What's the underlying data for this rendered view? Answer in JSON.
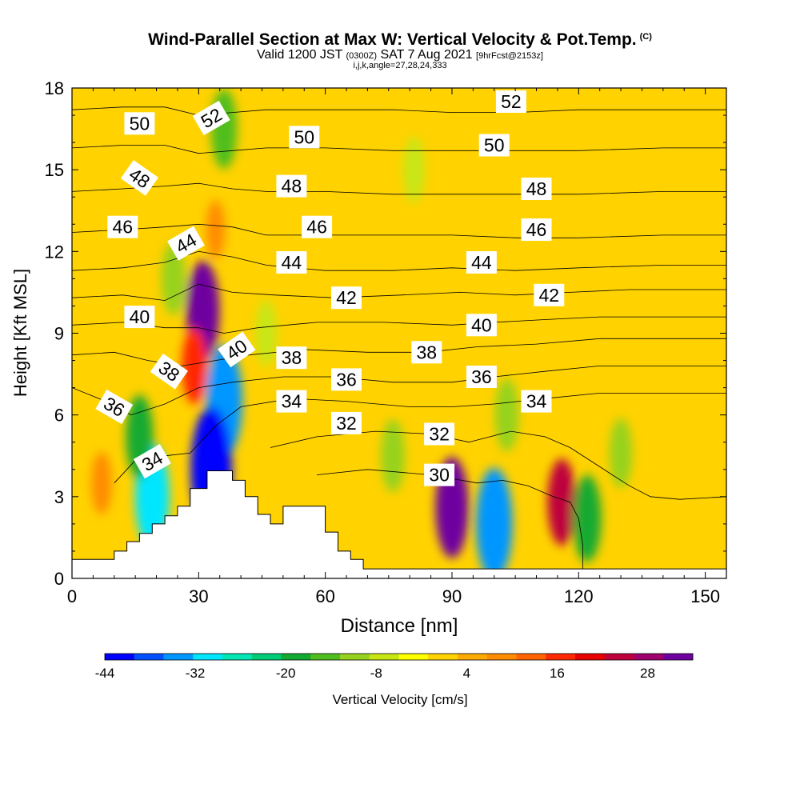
{
  "title": {
    "main": "Wind-Parallel Section at Max W: Vertical Velocity & Pot.Temp.",
    "copyright": "(C)",
    "valid_prefix": "Valid 1200 JST",
    "valid_utc": "(0300Z)",
    "valid_date": "SAT 7 Aug 2021",
    "forecast": "[9hrFcst@2153z]",
    "subtitle": "i,j,k,angle=27,28,24,333"
  },
  "chart_data": {
    "type": "heatmap",
    "xlabel": "Distance [nm]",
    "ylabel": "Height [Kft MSL]",
    "xlim": [
      0,
      155
    ],
    "ylim": [
      0,
      18
    ],
    "x_ticks": [
      "0",
      "30",
      "60",
      "90",
      "120",
      "150"
    ],
    "x_tick_values": [
      0,
      30,
      60,
      90,
      120,
      150
    ],
    "y_ticks": [
      "0",
      "3",
      "6",
      "9",
      "12",
      "15",
      "18"
    ],
    "y_tick_values": [
      0,
      3,
      6,
      9,
      12,
      15,
      18
    ],
    "colorbar": {
      "label": "Vertical Velocity [cm/s]",
      "ticks": [
        "-44",
        "-32",
        "-20",
        "-8",
        "4",
        "16",
        "28"
      ],
      "tick_values": [
        -44,
        -32,
        -20,
        -8,
        4,
        16,
        28
      ],
      "range": [
        -44,
        34
      ],
      "colors": [
        "#0000ff",
        "#0050ff",
        "#0096ff",
        "#00e6ff",
        "#00e6b4",
        "#00cc78",
        "#14aa32",
        "#50be1e",
        "#96d21e",
        "#c8e614",
        "#ffff00",
        "#ffd200",
        "#ffaa00",
        "#ff8c00",
        "#ff6400",
        "#ff2800",
        "#e60000",
        "#be003c",
        "#a0006e",
        "#6e00a0"
      ]
    },
    "background_value": 2,
    "velocity_features": [
      {
        "x": 31,
        "y": 9.8,
        "value": 32
      },
      {
        "x": 29,
        "y": 7.8,
        "value": 18
      },
      {
        "x": 34,
        "y": 12.8,
        "value": 8
      },
      {
        "x": 36,
        "y": 6.5,
        "value": -34
      },
      {
        "x": 33,
        "y": 4.0,
        "value": -42
      },
      {
        "x": 19,
        "y": 3.0,
        "value": -30
      },
      {
        "x": 16,
        "y": 5.2,
        "value": -18
      },
      {
        "x": 36,
        "y": 16.5,
        "value": -16
      },
      {
        "x": 24,
        "y": 11.0,
        "value": -12
      },
      {
        "x": 90,
        "y": 2.6,
        "value": 32
      },
      {
        "x": 100,
        "y": 2.0,
        "value": -34
      },
      {
        "x": 116,
        "y": 2.8,
        "value": 24
      },
      {
        "x": 122,
        "y": 2.2,
        "value": -20
      },
      {
        "x": 103,
        "y": 6.0,
        "value": -12
      },
      {
        "x": 130,
        "y": 4.6,
        "value": -10
      },
      {
        "x": 76,
        "y": 4.5,
        "value": -12
      },
      {
        "x": 7,
        "y": 3.5,
        "value": 10
      },
      {
        "x": 46,
        "y": 9.0,
        "value": -8
      },
      {
        "x": 81,
        "y": 15.0,
        "value": -8
      }
    ],
    "terrain": [
      [
        0,
        0.7
      ],
      [
        10,
        0.7
      ],
      [
        10,
        1.0
      ],
      [
        13,
        1.0
      ],
      [
        13,
        1.35
      ],
      [
        16,
        1.35
      ],
      [
        16,
        1.65
      ],
      [
        19,
        1.65
      ],
      [
        19,
        2.0
      ],
      [
        22,
        2.0
      ],
      [
        22,
        2.3
      ],
      [
        25,
        2.3
      ],
      [
        25,
        2.65
      ],
      [
        28,
        2.65
      ],
      [
        28,
        3.3
      ],
      [
        32,
        3.3
      ],
      [
        32,
        3.95
      ],
      [
        38,
        3.95
      ],
      [
        38,
        3.6
      ],
      [
        41,
        3.6
      ],
      [
        41,
        3.0
      ],
      [
        44,
        3.0
      ],
      [
        44,
        2.35
      ],
      [
        47,
        2.35
      ],
      [
        47,
        2.0
      ],
      [
        50,
        2.0
      ],
      [
        50,
        2.65
      ],
      [
        60,
        2.65
      ],
      [
        60,
        1.7
      ],
      [
        63,
        1.7
      ],
      [
        63,
        1.0
      ],
      [
        66,
        1.0
      ],
      [
        66,
        0.7
      ],
      [
        69,
        0.7
      ],
      [
        69,
        0.35
      ],
      [
        155,
        0.35
      ]
    ],
    "isentropes": [
      {
        "level": 30,
        "points": [
          [
            58,
            3.8
          ],
          [
            70,
            4.0
          ],
          [
            85,
            3.8
          ],
          [
            96,
            3.5
          ],
          [
            102,
            3.6
          ],
          [
            108,
            3.4
          ],
          [
            114,
            3.0
          ],
          [
            118,
            2.8
          ],
          [
            120,
            2.2
          ],
          [
            121,
            1.2
          ],
          [
            121,
            0.3
          ]
        ]
      },
      {
        "level": 32,
        "points": [
          [
            47,
            4.8
          ],
          [
            58,
            5.2
          ],
          [
            72,
            5.4
          ],
          [
            85,
            5.3
          ],
          [
            94,
            5.0
          ],
          [
            104,
            5.4
          ],
          [
            112,
            5.2
          ],
          [
            118,
            4.8
          ],
          [
            124,
            4.2
          ],
          [
            132,
            3.4
          ],
          [
            137,
            3.0
          ],
          [
            144,
            2.9
          ],
          [
            155,
            3.0
          ]
        ]
      },
      {
        "level": 34,
        "points": [
          [
            10,
            3.5
          ],
          [
            16,
            4.5
          ],
          [
            22,
            4.5
          ],
          [
            28,
            4.6
          ],
          [
            34,
            5.6
          ],
          [
            40,
            6.3
          ],
          [
            52,
            6.6
          ],
          [
            65,
            6.5
          ],
          [
            80,
            6.3
          ],
          [
            90,
            6.3
          ],
          [
            100,
            6.4
          ],
          [
            112,
            6.6
          ],
          [
            125,
            6.8
          ],
          [
            140,
            6.8
          ],
          [
            155,
            6.8
          ]
        ]
      },
      {
        "level": 36,
        "points": [
          [
            0,
            7.0
          ],
          [
            8,
            6.5
          ],
          [
            14,
            6.0
          ],
          [
            22,
            6.4
          ],
          [
            30,
            7.0
          ],
          [
            38,
            7.2
          ],
          [
            50,
            7.4
          ],
          [
            62,
            7.4
          ],
          [
            76,
            7.2
          ],
          [
            90,
            7.2
          ],
          [
            100,
            7.4
          ],
          [
            112,
            7.6
          ],
          [
            125,
            7.8
          ],
          [
            140,
            7.8
          ],
          [
            155,
            7.8
          ]
        ]
      },
      {
        "level": 38,
        "points": [
          [
            0,
            8.2
          ],
          [
            10,
            8.3
          ],
          [
            18,
            8.0
          ],
          [
            26,
            7.8
          ],
          [
            34,
            8.0
          ],
          [
            42,
            8.2
          ],
          [
            55,
            8.4
          ],
          [
            70,
            8.3
          ],
          [
            84,
            8.3
          ],
          [
            96,
            8.5
          ],
          [
            110,
            8.6
          ],
          [
            125,
            8.8
          ],
          [
            140,
            8.8
          ],
          [
            155,
            8.8
          ]
        ]
      },
      {
        "level": 40,
        "points": [
          [
            0,
            9.3
          ],
          [
            12,
            9.4
          ],
          [
            22,
            9.2
          ],
          [
            30,
            9.2
          ],
          [
            36,
            9.0
          ],
          [
            44,
            9.2
          ],
          [
            58,
            9.4
          ],
          [
            74,
            9.4
          ],
          [
            90,
            9.3
          ],
          [
            100,
            9.4
          ],
          [
            112,
            9.5
          ],
          [
            125,
            9.6
          ],
          [
            140,
            9.6
          ],
          [
            155,
            9.6
          ]
        ]
      },
      {
        "level": 42,
        "points": [
          [
            0,
            10.3
          ],
          [
            12,
            10.4
          ],
          [
            22,
            10.2
          ],
          [
            30,
            10.8
          ],
          [
            38,
            10.5
          ],
          [
            48,
            10.4
          ],
          [
            62,
            10.3
          ],
          [
            78,
            10.4
          ],
          [
            92,
            10.5
          ],
          [
            105,
            10.4
          ],
          [
            118,
            10.5
          ],
          [
            132,
            10.6
          ],
          [
            155,
            10.6
          ]
        ]
      },
      {
        "level": 44,
        "points": [
          [
            0,
            11.3
          ],
          [
            12,
            11.4
          ],
          [
            22,
            11.6
          ],
          [
            30,
            12.0
          ],
          [
            38,
            11.8
          ],
          [
            46,
            11.5
          ],
          [
            60,
            11.3
          ],
          [
            76,
            11.3
          ],
          [
            90,
            11.4
          ],
          [
            105,
            11.3
          ],
          [
            120,
            11.4
          ],
          [
            140,
            11.5
          ],
          [
            155,
            11.5
          ]
        ]
      },
      {
        "level": 46,
        "points": [
          [
            0,
            12.7
          ],
          [
            12,
            12.8
          ],
          [
            22,
            12.9
          ],
          [
            30,
            13.0
          ],
          [
            38,
            12.9
          ],
          [
            46,
            12.6
          ],
          [
            60,
            12.6
          ],
          [
            76,
            12.6
          ],
          [
            90,
            12.6
          ],
          [
            105,
            12.5
          ],
          [
            120,
            12.5
          ],
          [
            140,
            12.6
          ],
          [
            155,
            12.6
          ]
        ]
      },
      {
        "level": 48,
        "points": [
          [
            0,
            14.2
          ],
          [
            12,
            14.3
          ],
          [
            22,
            14.4
          ],
          [
            30,
            14.5
          ],
          [
            38,
            14.3
          ],
          [
            46,
            14.2
          ],
          [
            60,
            14.2
          ],
          [
            76,
            14.1
          ],
          [
            90,
            14.1
          ],
          [
            105,
            14.1
          ],
          [
            120,
            14.1
          ],
          [
            140,
            14.2
          ],
          [
            155,
            14.2
          ]
        ]
      },
      {
        "level": 50,
        "points": [
          [
            0,
            15.8
          ],
          [
            12,
            15.9
          ],
          [
            22,
            15.9
          ],
          [
            30,
            15.6
          ],
          [
            38,
            15.7
          ],
          [
            46,
            15.8
          ],
          [
            60,
            15.8
          ],
          [
            76,
            15.7
          ],
          [
            90,
            15.7
          ],
          [
            105,
            15.7
          ],
          [
            120,
            15.7
          ],
          [
            140,
            15.8
          ],
          [
            155,
            15.8
          ]
        ]
      },
      {
        "level": 52,
        "points": [
          [
            0,
            17.2
          ],
          [
            12,
            17.3
          ],
          [
            22,
            17.3
          ],
          [
            30,
            17.0
          ],
          [
            38,
            17.1
          ],
          [
            46,
            17.2
          ],
          [
            60,
            17.2
          ],
          [
            76,
            17.2
          ],
          [
            90,
            17.1
          ],
          [
            105,
            17.1
          ],
          [
            120,
            17.2
          ],
          [
            140,
            17.2
          ],
          [
            155,
            17.2
          ]
        ]
      }
    ],
    "contour_labels": [
      {
        "text": "50",
        "x": 16,
        "y": 16.7,
        "angle": 0
      },
      {
        "text": "52",
        "x": 33,
        "y": 16.9,
        "angle": -30
      },
      {
        "text": "50",
        "x": 55,
        "y": 16.2,
        "angle": 0
      },
      {
        "text": "52",
        "x": 104,
        "y": 17.5,
        "angle": 0
      },
      {
        "text": "50",
        "x": 100,
        "y": 15.9,
        "angle": 0
      },
      {
        "text": "48",
        "x": 16,
        "y": 14.7,
        "angle": 35
      },
      {
        "text": "48",
        "x": 52,
        "y": 14.4,
        "angle": 0
      },
      {
        "text": "48",
        "x": 110,
        "y": 14.3,
        "angle": 0
      },
      {
        "text": "46",
        "x": 12,
        "y": 12.9,
        "angle": 0
      },
      {
        "text": "46",
        "x": 58,
        "y": 12.9,
        "angle": 0
      },
      {
        "text": "46",
        "x": 110,
        "y": 12.8,
        "angle": 0
      },
      {
        "text": "44",
        "x": 27,
        "y": 12.3,
        "angle": -30
      },
      {
        "text": "44",
        "x": 52,
        "y": 11.6,
        "angle": 0
      },
      {
        "text": "44",
        "x": 97,
        "y": 11.6,
        "angle": 0
      },
      {
        "text": "42",
        "x": 65,
        "y": 10.3,
        "angle": 0
      },
      {
        "text": "42",
        "x": 113,
        "y": 10.4,
        "angle": 0
      },
      {
        "text": "40",
        "x": 16,
        "y": 9.6,
        "angle": 0
      },
      {
        "text": "40",
        "x": 39,
        "y": 8.4,
        "angle": -35
      },
      {
        "text": "40",
        "x": 97,
        "y": 9.3,
        "angle": 0
      },
      {
        "text": "38",
        "x": 23,
        "y": 7.6,
        "angle": 35
      },
      {
        "text": "38",
        "x": 52,
        "y": 8.1,
        "angle": 0
      },
      {
        "text": "38",
        "x": 84,
        "y": 8.3,
        "angle": 0
      },
      {
        "text": "36",
        "x": 10,
        "y": 6.3,
        "angle": 30
      },
      {
        "text": "36",
        "x": 65,
        "y": 7.3,
        "angle": 0
      },
      {
        "text": "36",
        "x": 97,
        "y": 7.4,
        "angle": 0
      },
      {
        "text": "34",
        "x": 52,
        "y": 6.5,
        "angle": 0
      },
      {
        "text": "34",
        "x": 110,
        "y": 6.5,
        "angle": 0
      },
      {
        "text": "34",
        "x": 19,
        "y": 4.3,
        "angle": -30
      },
      {
        "text": "32",
        "x": 65,
        "y": 5.7,
        "angle": 0
      },
      {
        "text": "32",
        "x": 87,
        "y": 5.3,
        "angle": 0
      },
      {
        "text": "30",
        "x": 87,
        "y": 3.8,
        "angle": 0
      }
    ]
  }
}
